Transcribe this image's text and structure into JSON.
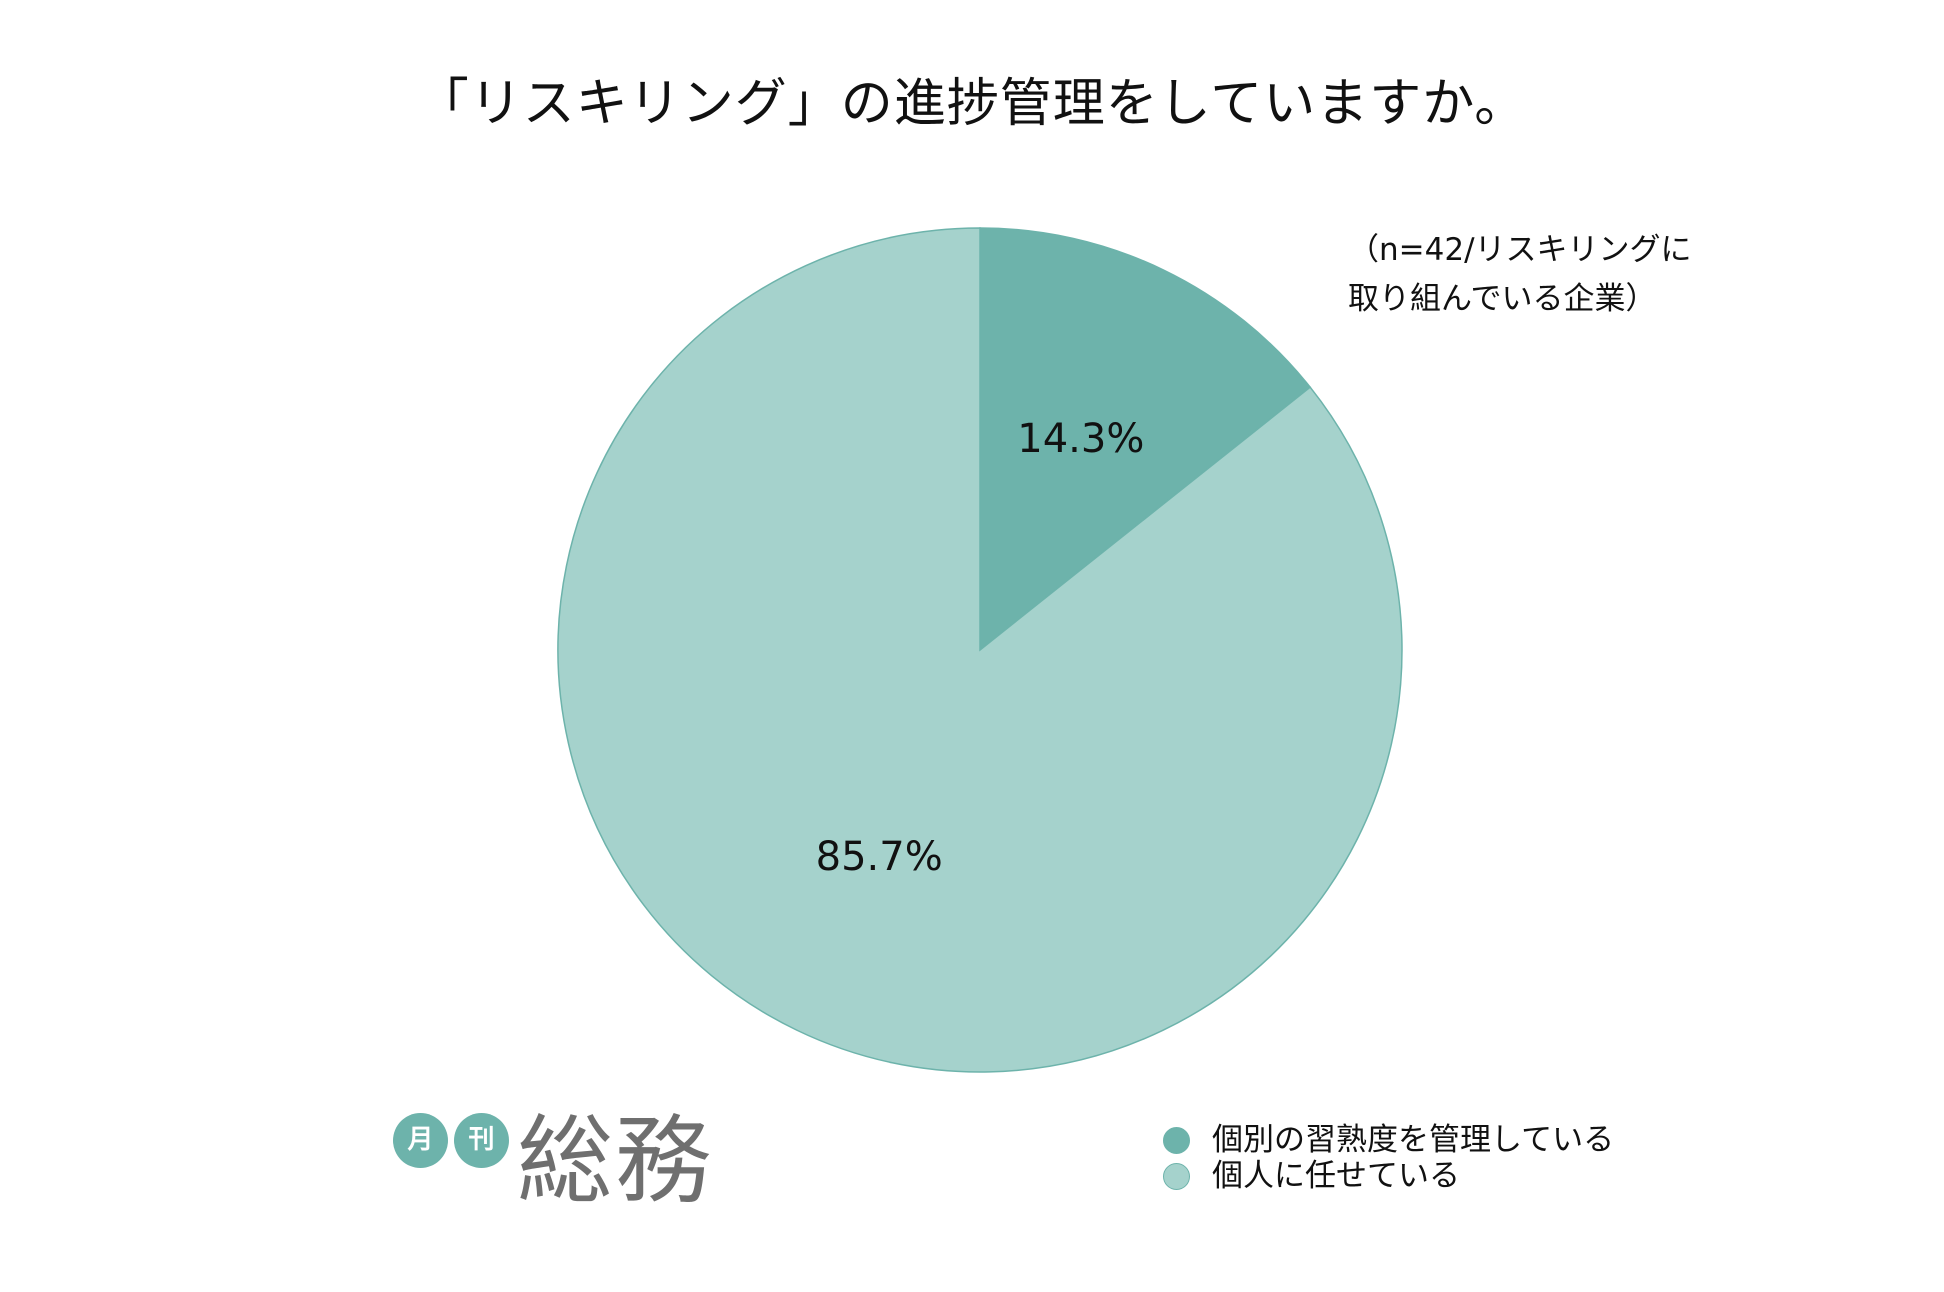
{
  "chart_data": {
    "type": "pie",
    "title": "「リスキリング」の進捗管理をしていますか。",
    "note": [
      "（n=42/リスキリングに",
      "取り組んでいる企業）"
    ],
    "slices": [
      {
        "label": "個別の習熟度を管理している",
        "value": 14.3,
        "value_label": "14.3%",
        "color": "#6db3ab"
      },
      {
        "label": "個人に任せている",
        "value": 85.7,
        "value_label": "85.7%",
        "color": "#a5d2cc"
      }
    ],
    "start_angle": "12 o'clock",
    "direction": "clockwise",
    "legend_position": "bottom-right",
    "edge_color": "#6db3ab"
  },
  "logo": {
    "badges": [
      "月",
      "刊"
    ],
    "wordmark": "総務",
    "badge_color": "#6db3ab",
    "wordmark_color": "#6f6f6f"
  }
}
